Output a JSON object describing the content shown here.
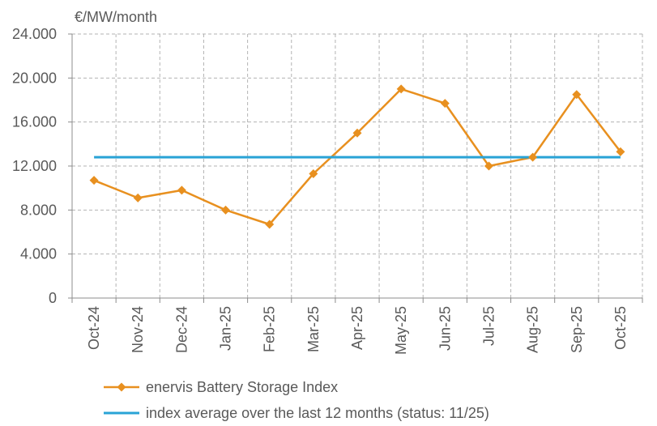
{
  "chart_data": {
    "type": "line",
    "ylabel": "€/MW/month",
    "categories": [
      "Oct-24",
      "Nov-24",
      "Dec-24",
      "Jan-25",
      "Feb-25",
      "Mar-25",
      "Apr-25",
      "May-25",
      "Jun-25",
      "Jul-25",
      "Aug-25",
      "Sep-25",
      "Oct-25"
    ],
    "y_ticks": [
      "0",
      "4.000",
      "8.000",
      "12.000",
      "16.000",
      "20.000",
      "24.000"
    ],
    "ylim": [
      0,
      24000
    ],
    "grid": true,
    "legend_position": "bottom-left",
    "series": [
      {
        "name": "enervis Battery Storage Index",
        "color": "#E8901F",
        "marker": "diamond",
        "values": [
          10700,
          9100,
          9800,
          8000,
          6700,
          11300,
          15000,
          19000,
          17700,
          12000,
          12800,
          18500,
          13300
        ]
      },
      {
        "name": "index average over the last 12 months (status: 11/25)",
        "color": "#29A3D6",
        "marker": "none",
        "values": [
          12800,
          12800,
          12800,
          12800,
          12800,
          12800,
          12800,
          12800,
          12800,
          12800,
          12800,
          12800,
          12800
        ]
      }
    ]
  }
}
